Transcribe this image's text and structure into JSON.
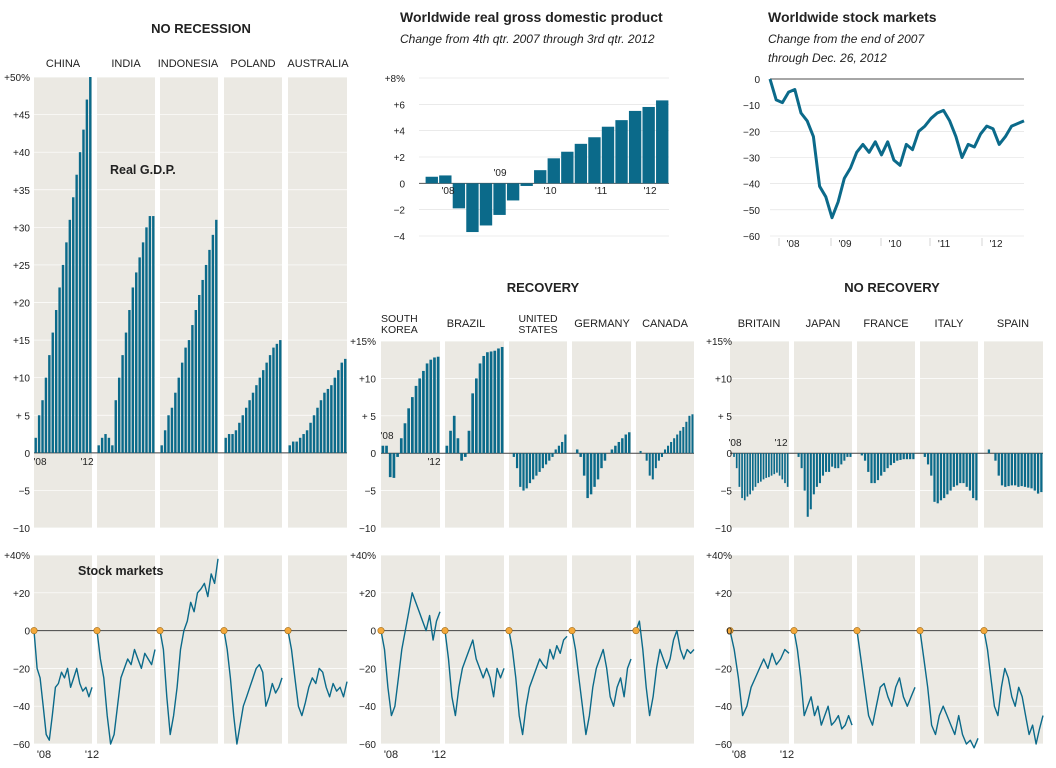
{
  "sections": {
    "no_recession": "NO RECESSION",
    "recovery": "RECOVERY",
    "no_recovery": "NO RECOVERY"
  },
  "labels": {
    "real_gdp": "Real G.D.P.",
    "stock_markets": "Stock markets"
  },
  "colors": {
    "teal": "#0b6a8a",
    "panel": "#ebe9e3",
    "dot": "#f4a93b"
  },
  "chart_data": [
    {
      "id": "worldwide-gdp",
      "type": "bar",
      "title": "Worldwide real gross domestic product",
      "subtitle": "Change from 4th qtr. 2007 through 3rd qtr. 2012",
      "ylim": [
        -4,
        8
      ],
      "yticks": [
        -4,
        -2,
        0,
        2,
        4,
        6,
        8
      ],
      "ytick_labels": [
        "−4",
        "−2",
        "0",
        "+2",
        "+4",
        "+6",
        "+8%"
      ],
      "x_labels": [
        "'08",
        "'09",
        "'10",
        "'11",
        "'12"
      ],
      "values": [
        0.5,
        0.6,
        -1.9,
        -3.7,
        -3.2,
        -2.4,
        -1.3,
        -0.2,
        1.0,
        1.9,
        2.4,
        3.0,
        3.5,
        4.3,
        4.8,
        5.5,
        5.8,
        6.3
      ]
    },
    {
      "id": "worldwide-stocks",
      "type": "line",
      "title": "Worldwide stock markets",
      "subtitle": "Change from the end of 2007 through Dec. 26, 2012",
      "ylim": [
        -60,
        0
      ],
      "yticks": [
        0,
        -10,
        -20,
        -30,
        -40,
        -50,
        -60
      ],
      "ytick_labels": [
        "0",
        "−10",
        "−20",
        "−30",
        "−40",
        "−50",
        "−60"
      ],
      "x_labels": [
        "'08",
        "'09",
        "'10",
        "'11",
        "'12"
      ],
      "values": [
        0,
        -8,
        -9,
        -5,
        -4,
        -13,
        -16,
        -22,
        -41,
        -45,
        -53,
        -47,
        -38,
        -34,
        -28,
        -25,
        -28,
        -24,
        -29,
        -24,
        -31,
        -33,
        -25,
        -27,
        -20,
        -18,
        -15,
        -13,
        -12,
        -16,
        -22,
        -30,
        -25,
        -26,
        -21,
        -18,
        -19,
        -25,
        -22,
        -18,
        -17,
        -16
      ]
    },
    {
      "id": "country-gdp",
      "type": "bar",
      "title": "Real G.D.P.",
      "ylim": [
        -10,
        50
      ],
      "yticks": [
        -10,
        -5,
        0,
        5,
        10,
        15,
        20,
        25,
        30,
        35,
        40,
        45,
        50
      ],
      "ytick_labels": [
        "−10",
        "−5",
        "0",
        "+ 5",
        "+10",
        "+15",
        "+20",
        "+25",
        "+30",
        "+35",
        "+40",
        "+45",
        "+50%"
      ],
      "countries": [
        {
          "name": "CHINA",
          "values": [
            2,
            5,
            7,
            10,
            13,
            16,
            19,
            22,
            25,
            28,
            31,
            34,
            37,
            40,
            43,
            47,
            50
          ]
        },
        {
          "name": "INDIA",
          "values": [
            1,
            2,
            2.5,
            2,
            1,
            7,
            10,
            13,
            16,
            19,
            22,
            24,
            26,
            28,
            30,
            31.5,
            31.5
          ]
        },
        {
          "name": "INDONESIA",
          "values": [
            1,
            3,
            5,
            6,
            8,
            10,
            12,
            14,
            15,
            17,
            19,
            21,
            23,
            25,
            27,
            29,
            31
          ]
        },
        {
          "name": "POLAND",
          "values": [
            2,
            2.5,
            2.5,
            3,
            4,
            5,
            6,
            7,
            8,
            9,
            10,
            11,
            12,
            13,
            14,
            14.5,
            15
          ]
        },
        {
          "name": "AUSTRALIA",
          "values": [
            1,
            1.5,
            1.5,
            2,
            2.5,
            3,
            4,
            5,
            6,
            7,
            8,
            8.5,
            9,
            10,
            11,
            12,
            12.5
          ]
        },
        {
          "name": "SOUTH KOREA",
          "values": [
            1,
            1,
            -3.2,
            -3.3,
            -0.5,
            2,
            4,
            6,
            7.5,
            9,
            10,
            11,
            12,
            12.5,
            12.8,
            12.9
          ]
        },
        {
          "name": "BRAZIL",
          "values": [
            1,
            3,
            5,
            2,
            -1,
            -0.5,
            3,
            8,
            10,
            12,
            13,
            13.5,
            13.6,
            13.7,
            14,
            14.2
          ]
        },
        {
          "name": "UNITED STATES",
          "values": [
            0,
            -0.5,
            -2,
            -4.5,
            -5,
            -4.7,
            -4,
            -3.5,
            -3,
            -2.5,
            -2,
            -1.5,
            -1,
            -0.5,
            0.5,
            1,
            1.5,
            2.5
          ]
        },
        {
          "name": "GERMANY",
          "values": [
            0,
            0.5,
            -0.5,
            -3,
            -6,
            -5.5,
            -4.5,
            -3.5,
            -2,
            -1,
            0,
            0.5,
            1,
            1.5,
            2,
            2.5,
            2.8
          ]
        },
        {
          "name": "CANADA",
          "values": [
            0,
            0.3,
            0,
            -1,
            -3,
            -3.5,
            -2,
            -1,
            -0.5,
            0.5,
            1,
            1.5,
            2,
            2.5,
            3,
            3.5,
            4.2,
            5,
            5.2
          ]
        }
      ]
    },
    {
      "id": "no-recovery-gdp",
      "type": "bar",
      "ylim": [
        -10,
        15
      ],
      "yticks": [
        -10,
        -5,
        0,
        5,
        10,
        15
      ],
      "ytick_labels": [
        "−10",
        "−5",
        "0",
        "+ 5",
        "+10",
        "+15%"
      ],
      "countries": [
        {
          "name": "BRITAIN",
          "values": [
            0,
            -0.5,
            -2,
            -4.5,
            -6,
            -6.3,
            -5.8,
            -5.5,
            -5,
            -4.5,
            -4,
            -3.8,
            -3.5,
            -3.3,
            -3.2,
            -3,
            -2.8,
            -2.6,
            -3,
            -3.5,
            -4,
            -4.5
          ]
        },
        {
          "name": "JAPAN",
          "values": [
            0,
            -0.5,
            -2,
            -5,
            -8.5,
            -7.5,
            -5.5,
            -4.5,
            -4,
            -3,
            -2.5,
            -2.5,
            -1.8,
            -2,
            -2,
            -1.5,
            -1,
            -0.5,
            -0.5
          ]
        },
        {
          "name": "FRANCE",
          "values": [
            0,
            -0.3,
            -1,
            -2.5,
            -4,
            -4,
            -3.6,
            -3,
            -2.5,
            -2,
            -1.6,
            -1.3,
            -1,
            -0.9,
            -0.8,
            -0.8,
            -0.8,
            -0.8
          ]
        },
        {
          "name": "ITALY",
          "values": [
            0,
            -0.5,
            -1.5,
            -3,
            -6.5,
            -6.7,
            -6.3,
            -6,
            -5.5,
            -5,
            -4.5,
            -4.3,
            -4,
            -4,
            -4.5,
            -5,
            -6,
            -6.3
          ]
        },
        {
          "name": "SPAIN",
          "values": [
            0,
            0.5,
            0,
            -1,
            -3,
            -4.3,
            -4.5,
            -4.4,
            -4.3,
            -4.3,
            -4.5,
            -4.4,
            -4.5,
            -4.6,
            -4.7,
            -5,
            -5.4,
            -5.2
          ]
        }
      ]
    },
    {
      "id": "country-stocks",
      "type": "line",
      "title": "Stock markets",
      "ylim": [
        -60,
        40
      ],
      "yticks": [
        -60,
        -40,
        -20,
        0,
        20,
        40
      ],
      "ytick_labels": [
        "−60",
        "−40",
        "−20",
        "0",
        "+20",
        "+40%"
      ],
      "x_labels": [
        "'08",
        "'12"
      ],
      "countries": [
        {
          "name": "CHINA",
          "values": [
            0,
            -20,
            -25,
            -40,
            -55,
            -58,
            -45,
            -30,
            -28,
            -22,
            -25,
            -20,
            -30,
            -25,
            -20,
            -28,
            -32,
            -30,
            -35,
            -30
          ]
        },
        {
          "name": "INDIA",
          "values": [
            0,
            -15,
            -25,
            -45,
            -60,
            -55,
            -40,
            -25,
            -20,
            -15,
            -18,
            -10,
            -15,
            -20,
            -12,
            -15,
            -18,
            -10
          ]
        },
        {
          "name": "INDONESIA",
          "values": [
            0,
            -10,
            -35,
            -55,
            -45,
            -30,
            -10,
            0,
            5,
            15,
            10,
            20,
            22,
            25,
            18,
            30,
            25,
            38
          ]
        },
        {
          "name": "POLAND",
          "values": [
            0,
            -10,
            -25,
            -45,
            -60,
            -50,
            -40,
            -35,
            -30,
            -25,
            -20,
            -18,
            -22,
            -40,
            -35,
            -28,
            -33,
            -30,
            -25
          ]
        },
        {
          "name": "AUSTRALIA",
          "values": [
            0,
            -10,
            -25,
            -40,
            -45,
            -38,
            -30,
            -25,
            -28,
            -20,
            -22,
            -30,
            -35,
            -28,
            -32,
            -30,
            -35,
            -27
          ]
        },
        {
          "name": "SOUTH KOREA",
          "values": [
            0,
            -10,
            -30,
            -45,
            -40,
            -25,
            -10,
            0,
            10,
            20,
            15,
            10,
            5,
            0,
            8,
            -5,
            5,
            10
          ]
        },
        {
          "name": "BRAZIL",
          "values": [
            0,
            -15,
            -35,
            -45,
            -30,
            -20,
            -15,
            -10,
            -5,
            -15,
            -20,
            -25,
            -20,
            -25,
            -35,
            -20,
            -25,
            -20
          ]
        },
        {
          "name": "UNITED STATES",
          "values": [
            0,
            -10,
            -25,
            -45,
            -55,
            -40,
            -30,
            -25,
            -20,
            -15,
            -18,
            -20,
            -10,
            -15,
            -8,
            -12,
            -5,
            -3
          ]
        },
        {
          "name": "GERMANY",
          "values": [
            0,
            -10,
            -25,
            -40,
            -55,
            -45,
            -30,
            -20,
            -15,
            -10,
            -20,
            -35,
            -40,
            -30,
            -25,
            -35,
            -20,
            -15
          ]
        },
        {
          "name": "CANADA",
          "values": [
            0,
            5,
            -10,
            -30,
            -45,
            -35,
            -20,
            -10,
            -15,
            -20,
            -15,
            -5,
            0,
            -10,
            -15,
            -10,
            -12,
            -10
          ]
        },
        {
          "name": "BRITAIN",
          "values": [
            0,
            -10,
            -25,
            -45,
            -40,
            -30,
            -25,
            -20,
            -15,
            -20,
            -12,
            -18,
            -15,
            -10,
            -12
          ]
        },
        {
          "name": "JAPAN",
          "values": [
            0,
            -10,
            -25,
            -45,
            -40,
            -35,
            -45,
            -40,
            -50,
            -45,
            -40,
            -50,
            -48,
            -45,
            -52,
            -50,
            -45,
            -50
          ]
        },
        {
          "name": "FRANCE",
          "values": [
            0,
            -15,
            -30,
            -45,
            -50,
            -40,
            -30,
            -28,
            -35,
            -40,
            -30,
            -25,
            -35,
            -40,
            -35,
            -30
          ]
        },
        {
          "name": "ITALY",
          "values": [
            0,
            -15,
            -30,
            -50,
            -55,
            -45,
            -40,
            -45,
            -50,
            -55,
            -45,
            -55,
            -60,
            -58,
            -62,
            -57
          ]
        },
        {
          "name": "SPAIN",
          "values": [
            0,
            -10,
            -25,
            -40,
            -45,
            -30,
            -20,
            -25,
            -35,
            -40,
            -30,
            -35,
            -45,
            -55,
            -50,
            -60,
            -52,
            -45
          ]
        }
      ]
    }
  ]
}
